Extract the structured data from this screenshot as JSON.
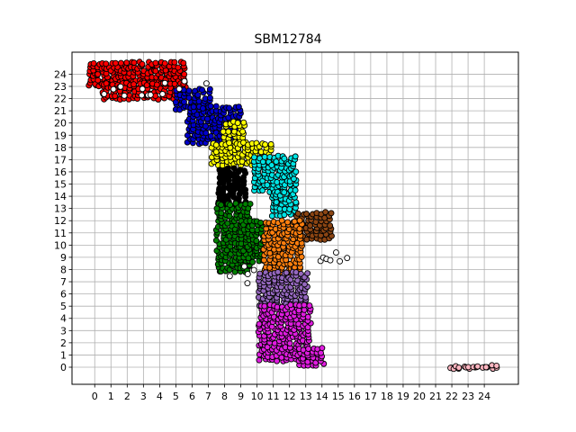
{
  "chart_data": {
    "type": "scatter",
    "title": "SBM12784",
    "xlabel": "",
    "ylabel": "",
    "xlim": [
      -1.4,
      26.1
    ],
    "ylim": [
      -1.4,
      25.8
    ],
    "x_ticks": [
      "0",
      "1",
      "2",
      "3",
      "4",
      "5",
      "6",
      "7",
      "8",
      "9",
      "10",
      "11",
      "12",
      "13",
      "14",
      "15",
      "16",
      "17",
      "18",
      "19",
      "20",
      "21",
      "22",
      "23",
      "24"
    ],
    "y_ticks": [
      "0",
      "1",
      "2",
      "3",
      "4",
      "5",
      "6",
      "7",
      "8",
      "9",
      "10",
      "11",
      "12",
      "13",
      "14",
      "15",
      "16",
      "17",
      "18",
      "19",
      "20",
      "21",
      "22",
      "23",
      "24"
    ],
    "grid": true,
    "marker": "circle, black edge",
    "series": [
      {
        "color": "#ff0000",
        "regions": [
          [
            -0.3,
            23.0,
            5.5,
            24.9
          ],
          [
            0.5,
            22.0,
            5.5,
            23.2
          ]
        ]
      },
      {
        "color": "#0000cc",
        "regions": [
          [
            5.0,
            21.2,
            7.0,
            22.7
          ],
          [
            5.8,
            18.4,
            8.9,
            21.3
          ]
        ]
      },
      {
        "color": "#ffff00",
        "regions": [
          [
            8.0,
            18.2,
            9.2,
            20.0
          ],
          [
            7.3,
            16.6,
            10.8,
            18.3
          ]
        ]
      },
      {
        "color": "#00e5e5",
        "regions": [
          [
            9.9,
            14.4,
            12.3,
            17.2
          ],
          [
            11.0,
            12.5,
            12.3,
            14.4
          ]
        ]
      },
      {
        "color": "#000000",
        "regions": [
          [
            7.7,
            13.3,
            9.2,
            16.2
          ]
        ]
      },
      {
        "color": "#008000",
        "regions": [
          [
            7.6,
            7.9,
            9.5,
            13.3
          ],
          [
            9.0,
            8.7,
            10.3,
            11.9
          ]
        ]
      },
      {
        "color": "#8b4513",
        "regions": [
          [
            12.5,
            10.5,
            14.5,
            12.6
          ]
        ]
      },
      {
        "color": "#ff7f0e",
        "regions": [
          [
            10.5,
            7.7,
            12.7,
            11.9
          ]
        ]
      },
      {
        "color": "#9467bd",
        "regions": [
          [
            10.2,
            5.0,
            13.0,
            7.7
          ]
        ]
      },
      {
        "color": "#e01ce0",
        "regions": [
          [
            10.2,
            0.6,
            13.2,
            5.0
          ],
          [
            12.6,
            0.2,
            14.0,
            1.5
          ]
        ]
      },
      {
        "color": "#ffb6c1",
        "regions": [
          [
            21.9,
            -0.05,
            24.8,
            0.05
          ]
        ]
      },
      {
        "color": "#ffffff",
        "regions": [
          [
            0.4,
            22.3,
            5.2,
            23.3
          ],
          [
            5.3,
            22.6,
            6.9,
            23.4
          ],
          [
            8.3,
            6.9,
            9.8,
            8.2
          ],
          [
            14.0,
            8.5,
            15.5,
            10.1
          ]
        ]
      }
    ]
  }
}
